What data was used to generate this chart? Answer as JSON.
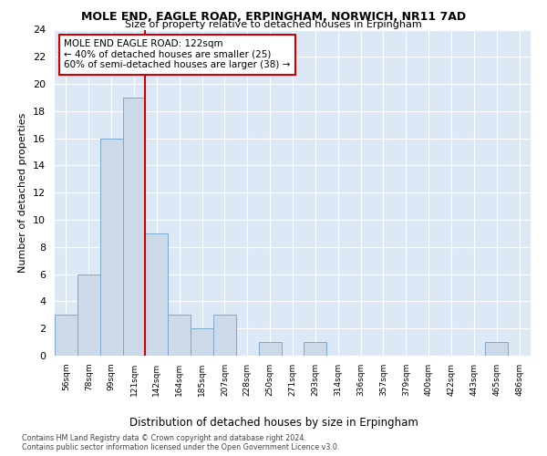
{
  "title": "MOLE END, EAGLE ROAD, ERPINGHAM, NORWICH, NR11 7AD",
  "subtitle": "Size of property relative to detached houses in Erpingham",
  "xlabel": "Distribution of detached houses by size in Erpingham",
  "ylabel": "Number of detached properties",
  "bar_color": "#ccd9e8",
  "bar_edge_color": "#7aa8cc",
  "bar_heights": [
    3,
    6,
    16,
    19,
    9,
    3,
    2,
    3,
    0,
    1,
    0,
    1,
    0,
    0,
    0,
    0,
    0,
    0,
    0,
    1,
    0
  ],
  "bin_labels": [
    "56sqm",
    "78sqm",
    "99sqm",
    "121sqm",
    "142sqm",
    "164sqm",
    "185sqm",
    "207sqm",
    "228sqm",
    "250sqm",
    "271sqm",
    "293sqm",
    "314sqm",
    "336sqm",
    "357sqm",
    "379sqm",
    "400sqm",
    "422sqm",
    "443sqm",
    "465sqm",
    "486sqm"
  ],
  "ylim": [
    0,
    24
  ],
  "yticks": [
    0,
    2,
    4,
    6,
    8,
    10,
    12,
    14,
    16,
    18,
    20,
    22,
    24
  ],
  "vline_x": 3.5,
  "vline_color": "#cc0000",
  "annotation_text": "MOLE END EAGLE ROAD: 122sqm\n← 40% of detached houses are smaller (25)\n60% of semi-detached houses are larger (38) →",
  "annotation_box_color": "#ffffff",
  "annotation_box_edge_color": "#cc0000",
  "footer_text": "Contains HM Land Registry data © Crown copyright and database right 2024.\nContains public sector information licensed under the Open Government Licence v3.0.",
  "plot_bg_color": "#dce8f5"
}
